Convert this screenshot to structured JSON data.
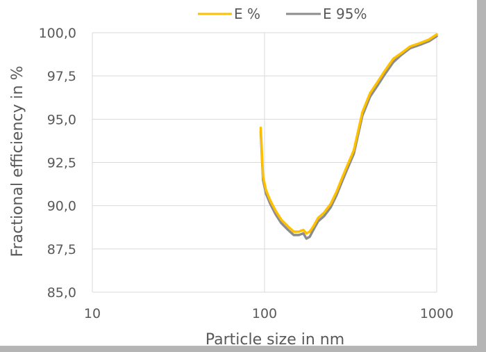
{
  "chart_data": {
    "type": "line",
    "xlabel": "Particle size in nm",
    "ylabel": "Fractional efficiency in %",
    "x_scale": "log",
    "xlim": [
      10,
      1000
    ],
    "ylim": [
      85.0,
      100.0
    ],
    "x_ticks": [
      10,
      100,
      1000
    ],
    "x_tick_labels": [
      "10",
      "100",
      "1000"
    ],
    "y_ticks": [
      85.0,
      87.5,
      90.0,
      92.5,
      95.0,
      97.5,
      100.0
    ],
    "y_tick_labels": [
      "85,0",
      "87,5",
      "90,0",
      "92,5",
      "95,0",
      "97,5",
      "100,0"
    ],
    "grid": "major",
    "legend_position": "top",
    "series": [
      {
        "name": "E %",
        "color": "#ffc000",
        "x": [
          95,
          98,
          102,
          108,
          116,
          125,
          137,
          148,
          158,
          168,
          175,
          183,
          192,
          205,
          222,
          242,
          262,
          282,
          302,
          330,
          370,
          410,
          450,
          500,
          560,
          620,
          700,
          800,
          900,
          1000
        ],
        "y": [
          94.5,
          91.7,
          90.9,
          90.3,
          89.7,
          89.2,
          88.8,
          88.5,
          88.5,
          88.6,
          88.4,
          88.5,
          88.8,
          89.3,
          89.6,
          90.1,
          90.8,
          91.6,
          92.3,
          93.2,
          95.4,
          96.5,
          97.1,
          97.8,
          98.5,
          98.8,
          99.2,
          99.4,
          99.6,
          99.9
        ]
      },
      {
        "name": "E 95%",
        "color": "#8c8c8c",
        "x": [
          95,
          98,
          102,
          108,
          116,
          125,
          137,
          148,
          158,
          168,
          175,
          183,
          192,
          205,
          222,
          242,
          262,
          282,
          302,
          330,
          370,
          410,
          450,
          500,
          560,
          620,
          700,
          800,
          900,
          1000
        ],
        "y": [
          94.3,
          91.5,
          90.7,
          90.1,
          89.5,
          89.0,
          88.6,
          88.3,
          88.3,
          88.4,
          88.1,
          88.2,
          88.6,
          89.1,
          89.4,
          89.9,
          90.6,
          91.4,
          92.1,
          93.0,
          95.2,
          96.3,
          96.9,
          97.6,
          98.3,
          98.7,
          99.1,
          99.3,
          99.5,
          99.8
        ]
      }
    ]
  }
}
